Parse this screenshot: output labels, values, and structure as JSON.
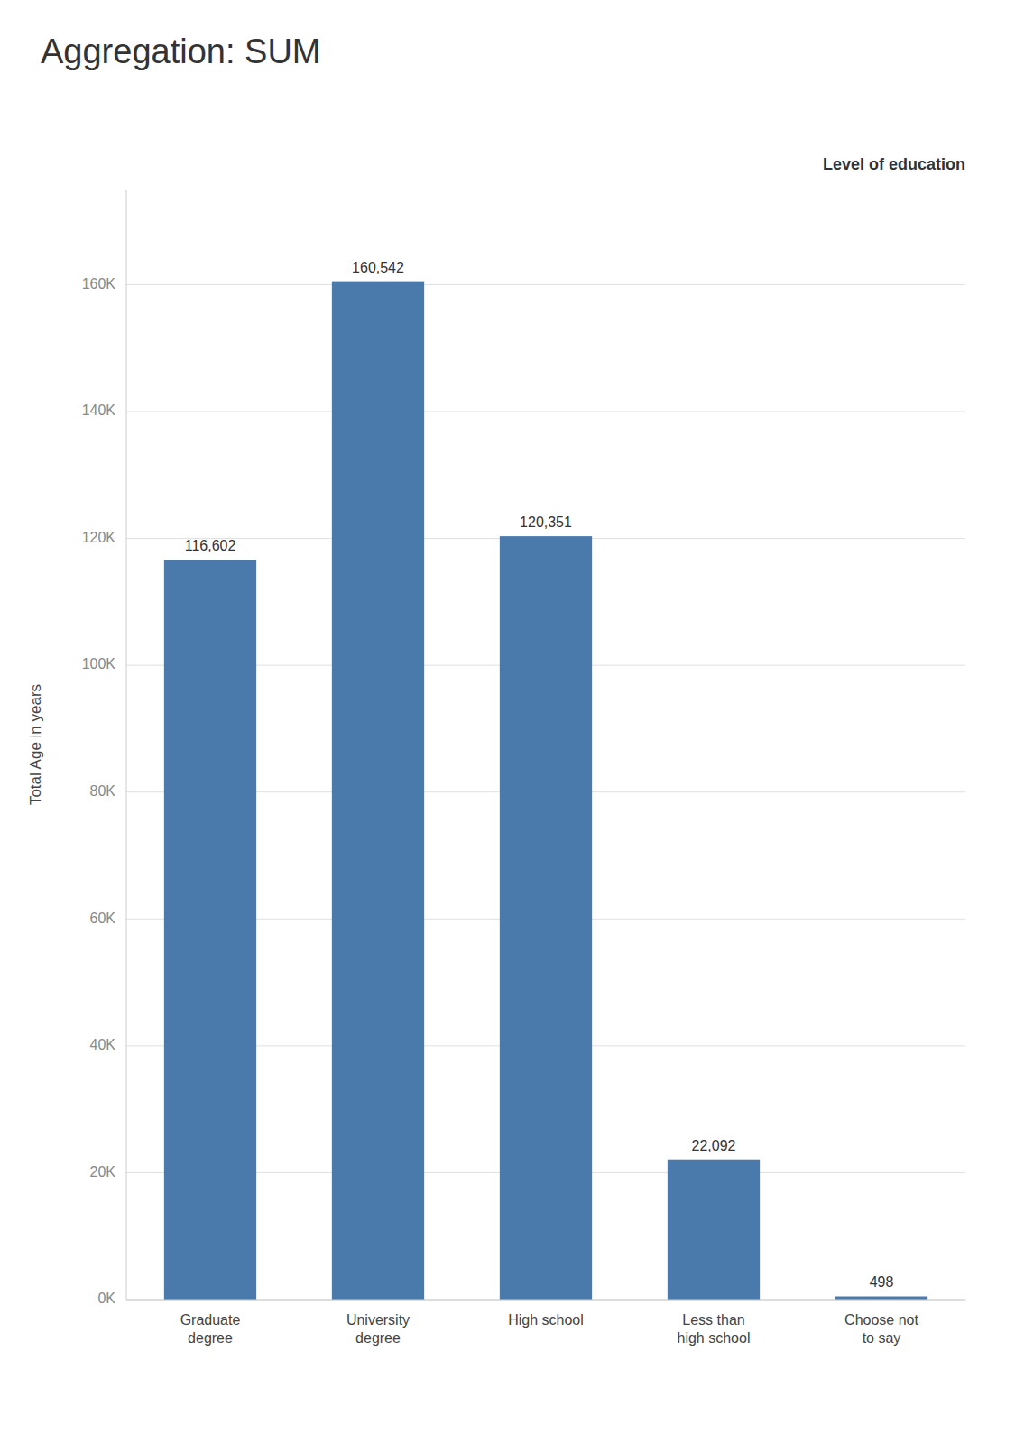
{
  "chart_data": {
    "type": "bar",
    "title": "Aggregation: SUM",
    "xlabel": "Level of education",
    "ylabel": "Total Age in years",
    "categories": [
      "Graduate\ndegree",
      "University\ndegree",
      "High school",
      "Less than\nhigh school",
      "Choose not\nto say"
    ],
    "values": [
      116602,
      160542,
      120351,
      22092,
      498
    ],
    "value_labels": [
      "116,602",
      "160,542",
      "120,351",
      "22,092",
      "498"
    ],
    "data_labels": true,
    "color": "#4a7aac",
    "ylim": [
      0,
      175000
    ],
    "yticks": [
      {
        "value": 0,
        "label": "0K"
      },
      {
        "value": 20000,
        "label": "20K"
      },
      {
        "value": 40000,
        "label": "40K"
      },
      {
        "value": 60000,
        "label": "60K"
      },
      {
        "value": 80000,
        "label": "80K"
      },
      {
        "value": 100000,
        "label": "100K"
      },
      {
        "value": 120000,
        "label": "120K"
      },
      {
        "value": 140000,
        "label": "140K"
      },
      {
        "value": 160000,
        "label": "160K"
      }
    ],
    "grid": true
  }
}
